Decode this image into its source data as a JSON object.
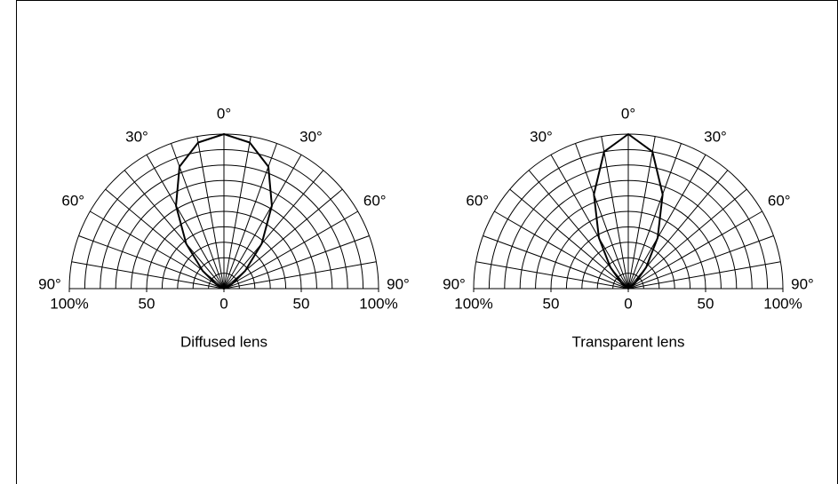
{
  "chart_data": [
    {
      "type": "polar",
      "title": "Diffused lens",
      "color": "#000000",
      "grid": true,
      "x": [
        -90,
        -80,
        -70,
        -60,
        -50,
        -40,
        -30,
        -20,
        -10,
        0,
        10,
        20,
        30,
        40,
        50,
        60,
        70,
        80,
        90
      ],
      "values": [
        0,
        0,
        1,
        6,
        18,
        38,
        62,
        84,
        96,
        100,
        96,
        84,
        62,
        38,
        18,
        6,
        1,
        0,
        0
      ],
      "rlim": [
        0,
        100
      ],
      "xticks": [
        {
          "value": -100,
          "label": "100%"
        },
        {
          "value": -50,
          "label": "50"
        },
        0,
        {
          "value": 50,
          "label": "50"
        },
        {
          "value": 100,
          "label": "100%"
        }
      ],
      "thetaticks": [
        {
          "value": -90,
          "label": "90°"
        },
        {
          "value": -60,
          "label": "60°"
        },
        {
          "value": -30,
          "label": "30°"
        },
        {
          "value": 0,
          "label": "0°"
        },
        {
          "value": 30,
          "label": "30°"
        },
        {
          "value": 60,
          "label": "60°"
        },
        {
          "value": 90,
          "label": "90°"
        }
      ]
    },
    {
      "type": "polar",
      "title": "Transparent lens",
      "color": "#000000",
      "grid": true,
      "x": [
        -90,
        -80,
        -70,
        -60,
        -50,
        -40,
        -30,
        -20,
        -10,
        0,
        10,
        20,
        30,
        40,
        50,
        60,
        70,
        80,
        90
      ],
      "values": [
        0,
        0,
        0,
        1,
        6,
        18,
        38,
        65,
        90,
        100,
        90,
        65,
        38,
        18,
        6,
        1,
        0,
        0,
        0
      ],
      "rlim": [
        0,
        100
      ],
      "xticks": [
        {
          "value": -100,
          "label": "100%"
        },
        {
          "value": -50,
          "label": "50"
        },
        0,
        {
          "value": 50,
          "label": "50"
        },
        {
          "value": 100,
          "label": "100%"
        }
      ],
      "thetaticks": [
        {
          "value": -90,
          "label": "90°"
        },
        {
          "value": -60,
          "label": "60°"
        },
        {
          "value": -30,
          "label": "30°"
        },
        {
          "value": 0,
          "label": "0°"
        },
        {
          "value": 30,
          "label": "30°"
        },
        {
          "value": 60,
          "label": "60°"
        },
        {
          "value": 90,
          "label": "90°"
        }
      ]
    }
  ]
}
